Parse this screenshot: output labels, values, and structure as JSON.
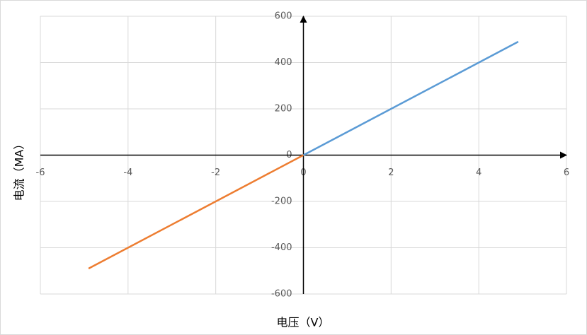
{
  "chart_data": {
    "type": "line",
    "x_label": "电压（V）",
    "y_label": "电流（MA）",
    "series": [
      {
        "color": "#5b9bd5",
        "x": [
          0,
          4.9
        ],
        "values": [
          0,
          490
        ]
      },
      {
        "color": "#ed7d31",
        "x": [
          0,
          -4.9
        ],
        "values": [
          0,
          -490
        ]
      }
    ],
    "xlim": [
      -6,
      6
    ],
    "xticks": [
      -6,
      -4,
      -2,
      0,
      2,
      4,
      6
    ],
    "ylim": [
      -600,
      600
    ],
    "yticks": [
      -600,
      -400,
      -200,
      0,
      200,
      400,
      600
    ],
    "grid": true
  }
}
